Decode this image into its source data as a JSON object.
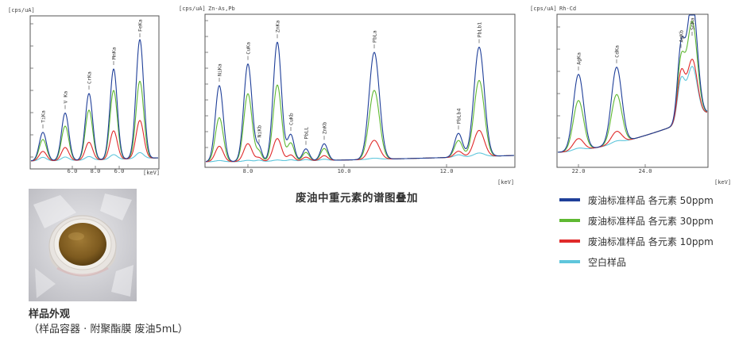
{
  "charts": [
    {
      "id": "c1",
      "unit_y": "[cps/uA]",
      "unit_x": "[keV]",
      "title": "",
      "tick_labels": [
        "6.0",
        "8.0",
        "6.0"
      ],
      "peaks": [
        "TiKa",
        "V Ka",
        "CrKa",
        "MnKa",
        "FeKa"
      ]
    },
    {
      "id": "c2",
      "unit_y": "[cps/uA]",
      "title": "Zn-As,Pb",
      "unit_x": "[keV]",
      "tick_labels": [
        "8.0",
        "10.0",
        "12.0"
      ],
      "peaks": [
        "NiKa",
        "CuKa",
        "NiKb",
        "ZnKa",
        "CuKb",
        "PbLL",
        "ZnKb",
        "PbLa",
        "PbLb4",
        "PbLb1"
      ]
    },
    {
      "id": "c3",
      "unit_y": "[cps/uA]",
      "title": "Rh-Cd",
      "unit_x": "[keV]",
      "tick_labels": [
        "22.0",
        "24.0"
      ],
      "peaks": [
        "AgKa",
        "CdKa",
        "AgKb",
        "SnKa"
      ]
    }
  ],
  "caption": "废油中重元素的谱图叠加",
  "legend": [
    {
      "label": "废油标准样品 各元素 50ppm",
      "color": "#1f3f99"
    },
    {
      "label": "废油标准样品 各元素 30ppm",
      "color": "#5fb832"
    },
    {
      "label": "废油标准样品 各元素 10ppm",
      "color": "#e02a2a"
    },
    {
      "label": "空白样品",
      "color": "#5fc6dc"
    }
  ],
  "photo": {
    "title": "样品外观",
    "subtitle": "（样品容器 · 附聚酯膜 废油5mL）"
  },
  "chart_data": [
    {
      "type": "line",
      "title": "",
      "xlabel": "[keV]",
      "ylabel": "[cps/uA]",
      "x_ticks": [
        "6.0",
        "8.0",
        "6.0"
      ],
      "categories": [
        "TiKa",
        "V Ka",
        "CrKa",
        "MnKa",
        "FeKa"
      ],
      "series": [
        {
          "name": "废油标准样品 各元素 50ppm",
          "values": [
            24,
            40,
            56,
            76,
            100
          ]
        },
        {
          "name": "废油标准样品 各元素 30ppm",
          "values": [
            18,
            29,
            42,
            58,
            65
          ]
        },
        {
          "name": "废油标准样品 各元素 10ppm",
          "values": [
            8,
            11,
            15,
            24,
            32
          ]
        },
        {
          "name": "空白样品",
          "values": [
            3,
            3,
            3,
            4,
            5
          ]
        }
      ]
    },
    {
      "type": "line",
      "title": "Zn-As,Pb",
      "xlabel": "[keV]",
      "ylabel": "[cps/uA]",
      "x_ticks": [
        "8.0",
        "10.0",
        "12.0"
      ],
      "categories": [
        "NiKa",
        "CuKa",
        "NiKb",
        "ZnKa",
        "CuKb",
        "PbLL",
        "ZnKb",
        "PbLa",
        "PbLb4",
        "PbLb1"
      ],
      "series": [
        {
          "name": "废油标准样品 各元素 50ppm",
          "values": [
            64,
            82,
            12,
            100,
            22,
            10,
            14,
            90,
            20,
            92
          ]
        },
        {
          "name": "废油标准样品 各元素 30ppm",
          "values": [
            37,
            57,
            8,
            64,
            15,
            7,
            10,
            58,
            14,
            64
          ]
        },
        {
          "name": "废油标准样品 各元素 10ppm",
          "values": [
            13,
            15,
            3,
            19,
            5,
            3,
            4,
            16,
            5,
            22
          ]
        },
        {
          "name": "空白样品",
          "values": [
            1,
            1,
            1,
            1,
            1,
            1,
            1,
            1,
            2,
            3
          ]
        }
      ]
    },
    {
      "type": "line",
      "title": "Rh-Cd",
      "xlabel": "[keV]",
      "ylabel": "[cps/uA]",
      "x_ticks": [
        "22.0",
        "24.0"
      ],
      "categories": [
        "AgKa",
        "CdKa",
        "AgKb",
        "SnKa"
      ],
      "series": [
        {
          "name": "废油标准样品 各元素 50ppm",
          "values": [
            64,
            64,
            60,
            100
          ]
        },
        {
          "name": "废油标准样品 各元素 30ppm",
          "values": [
            42,
            41,
            50,
            82
          ]
        },
        {
          "name": "废油标准样品 各元素 10ppm",
          "values": [
            10,
            10,
            40,
            50
          ]
        },
        {
          "name": "空白样品",
          "values": [
            2,
            2,
            34,
            44
          ]
        }
      ]
    }
  ]
}
